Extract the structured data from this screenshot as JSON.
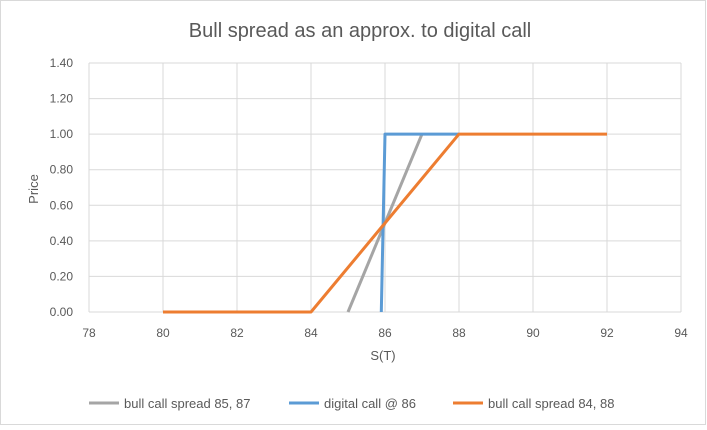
{
  "chart_data": {
    "type": "line",
    "title": "Bull spread as an approx. to digital call",
    "xlabel": "S(T)",
    "ylabel": "Price",
    "xlim": [
      78,
      94
    ],
    "ylim": [
      0,
      1.4
    ],
    "xticks": [
      78,
      80,
      82,
      84,
      86,
      88,
      90,
      92,
      94
    ],
    "yticks": [
      "0.00",
      "0.20",
      "0.40",
      "0.60",
      "0.80",
      "1.00",
      "1.20",
      "1.40"
    ],
    "grid": true,
    "legend_position": "bottom",
    "series": [
      {
        "name": "bull call spread 85, 87",
        "color": "#a5a5a5",
        "points": [
          [
            85,
            0
          ],
          [
            87,
            1
          ]
        ]
      },
      {
        "name": "digital call @ 86",
        "color": "#5b9bd5",
        "points": [
          [
            85.9,
            0
          ],
          [
            86,
            1
          ],
          [
            88,
            1
          ]
        ]
      },
      {
        "name": "bull call spread 84, 88",
        "color": "#ed7d31",
        "points": [
          [
            80,
            0
          ],
          [
            84,
            0
          ],
          [
            88,
            1
          ],
          [
            92,
            1
          ]
        ]
      }
    ]
  }
}
